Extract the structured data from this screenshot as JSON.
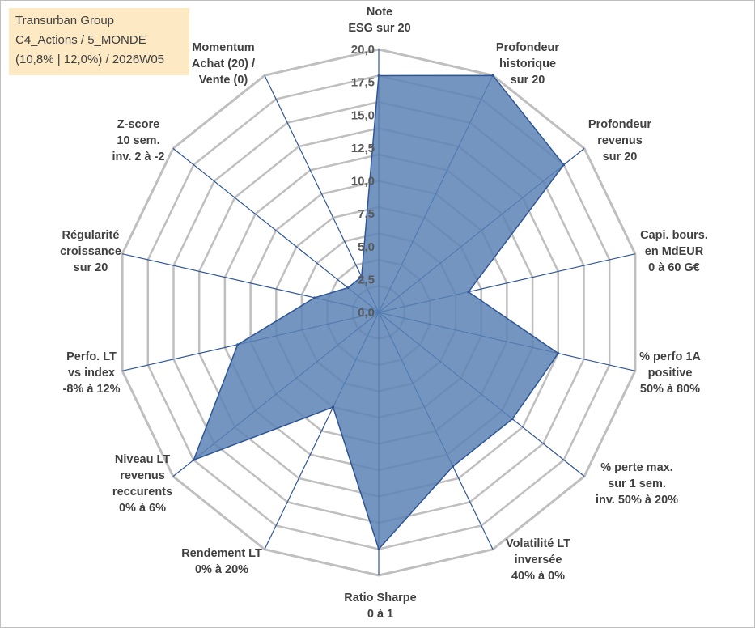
{
  "info": {
    "line1": "Transurban Group",
    "line2": "C4_Actions / 5_MONDE",
    "line3": "(10,8% | 12,0%) / 2026W05"
  },
  "chart_data": {
    "type": "radar",
    "rmax": 20,
    "ticks": [
      "0,0",
      "2,5",
      "5,0",
      "7,5",
      "10,0",
      "12,5",
      "15,0",
      "17,5",
      "20,0"
    ],
    "grid_rings": 10,
    "fill_color": "#5b83b5",
    "line_color": "#2f5597",
    "grid_color": "#bfbfbf",
    "axes": [
      {
        "label": [
          "Note",
          "ESG sur 20"
        ],
        "value": 18.0
      },
      {
        "label": [
          "Profondeur",
          "historique",
          "sur 20"
        ],
        "value": 20.0
      },
      {
        "label": [
          "Profondeur",
          "revenus",
          "sur 20"
        ],
        "value": 18.0
      },
      {
        "label": [
          "Capi. bours.",
          "en MdEUR",
          "0 à 60 G€"
        ],
        "value": 7.0
      },
      {
        "label": [
          "% perfo 1A",
          "positive",
          "50% à 80%"
        ],
        "value": 14.0
      },
      {
        "label": [
          "% perte max.",
          "sur 1 sem.",
          "inv. 50% à 20%"
        ],
        "value": 13.0
      },
      {
        "label": [
          "Volatilité LT",
          "inversée",
          "40% à 0%"
        ],
        "value": 13.0
      },
      {
        "label": [
          "Ratio Sharpe",
          "0 à 1"
        ],
        "value": 18.0
      },
      {
        "label": [
          "Rendement LT",
          "0% à 20%"
        ],
        "value": 8.0
      },
      {
        "label": [
          "Niveau LT",
          "revenus",
          "reccurents",
          "0% à 6%"
        ],
        "value": 18.0
      },
      {
        "label": [
          "Perfo. LT",
          "vs index",
          "-8% à 12%"
        ],
        "value": 11.0
      },
      {
        "label": [
          "Régularité",
          "croissance",
          "sur 20"
        ],
        "value": 5.0
      },
      {
        "label": [
          "Z-score",
          "10 sem.",
          "inv. 2 à -2"
        ],
        "value": 3.0
      },
      {
        "label": [
          "Momentum",
          "Achat (20) /",
          "Vente (0)"
        ],
        "value": 3.0
      }
    ]
  }
}
